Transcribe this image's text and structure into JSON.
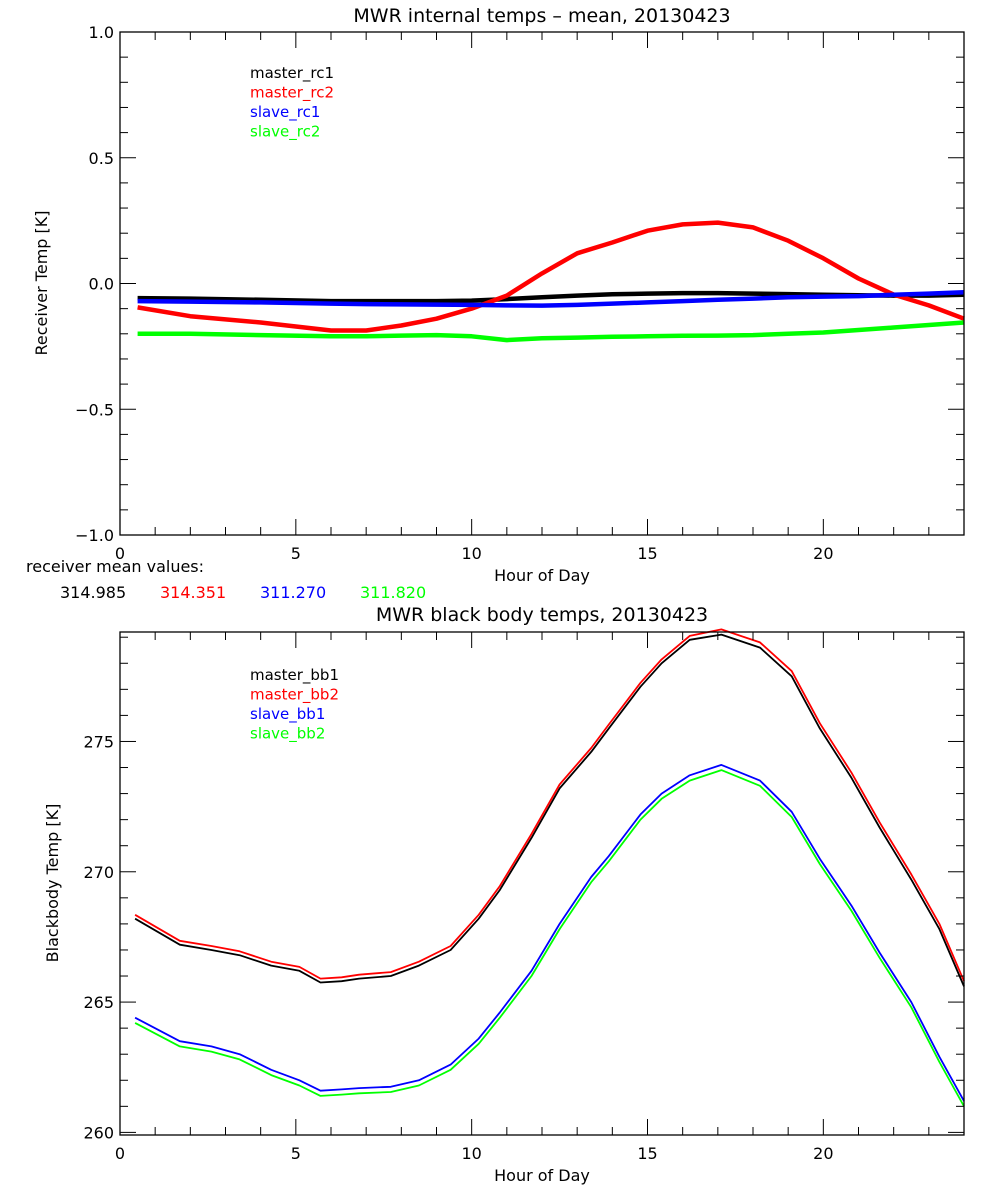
{
  "chart_data": [
    {
      "type": "line",
      "title": "MWR internal temps – mean, 20130423",
      "xlabel": "Hour of Day",
      "ylabel": "Receiver Temp [K]",
      "xlim": [
        0,
        24
      ],
      "ylim": [
        -1.0,
        1.0
      ],
      "xticks": [
        0,
        5,
        10,
        15,
        20
      ],
      "xtick_labels": [
        "0",
        "5",
        "10",
        "15",
        "20"
      ],
      "yticks": [
        -1.0,
        -0.5,
        0.0,
        0.5,
        1.0
      ],
      "ytick_labels": [
        "−1.0",
        "−0.5",
        "0.0",
        "0.5",
        "1.0"
      ],
      "grid": false,
      "legend_position": "top-left",
      "x": [
        0.5,
        2,
        4,
        6,
        7,
        8,
        9,
        10,
        11,
        12,
        13,
        14,
        15,
        16,
        17,
        18,
        19,
        20,
        21,
        22,
        23,
        24
      ],
      "series": [
        {
          "name": "master_rc1",
          "color": "#000000",
          "values": [
            -0.058,
            -0.06,
            -0.065,
            -0.07,
            -0.07,
            -0.07,
            -0.07,
            -0.068,
            -0.062,
            -0.055,
            -0.048,
            -0.043,
            -0.04,
            -0.038,
            -0.038,
            -0.04,
            -0.042,
            -0.045,
            -0.047,
            -0.048,
            -0.048,
            -0.045
          ]
        },
        {
          "name": "master_rc2",
          "color": "#ff0000",
          "values": [
            -0.095,
            -0.13,
            -0.155,
            -0.187,
            -0.187,
            -0.167,
            -0.14,
            -0.1,
            -0.048,
            0.04,
            0.12,
            0.163,
            0.21,
            0.235,
            0.242,
            0.223,
            0.17,
            0.1,
            0.02,
            -0.044,
            -0.087,
            -0.14
          ]
        },
        {
          "name": "slave_rc1",
          "color": "#0000ff",
          "values": [
            -0.07,
            -0.072,
            -0.075,
            -0.08,
            -0.082,
            -0.083,
            -0.084,
            -0.085,
            -0.087,
            -0.088,
            -0.085,
            -0.08,
            -0.075,
            -0.07,
            -0.065,
            -0.06,
            -0.055,
            -0.052,
            -0.05,
            -0.045,
            -0.04,
            -0.035
          ]
        },
        {
          "name": "slave_rc2",
          "color": "#00ff00",
          "values": [
            -0.2,
            -0.2,
            -0.205,
            -0.21,
            -0.21,
            -0.207,
            -0.205,
            -0.21,
            -0.225,
            -0.218,
            -0.215,
            -0.212,
            -0.21,
            -0.208,
            -0.207,
            -0.205,
            -0.2,
            -0.195,
            -0.185,
            -0.175,
            -0.165,
            -0.155
          ]
        }
      ],
      "annotation": {
        "label": "receiver mean values:",
        "values": [
          {
            "text": "314.985",
            "color": "#000000"
          },
          {
            "text": "314.351",
            "color": "#ff0000"
          },
          {
            "text": "311.270",
            "color": "#0000ff"
          },
          {
            "text": "311.820",
            "color": "#00ff00"
          }
        ]
      }
    },
    {
      "type": "line",
      "title": "MWR black body temps, 20130423",
      "xlabel": "Hour of Day",
      "ylabel": "Blackbody Temp [K]",
      "xlim": [
        0,
        24
      ],
      "ylim": [
        259.9,
        279.2
      ],
      "xticks": [
        0,
        5,
        10,
        15,
        20
      ],
      "xtick_labels": [
        "0",
        "5",
        "10",
        "15",
        "20"
      ],
      "yticks": [
        260,
        265,
        270,
        275
      ],
      "ytick_labels": [
        "260",
        "265",
        "270",
        "275"
      ],
      "grid": false,
      "legend_position": "top-left",
      "x": [
        0.43,
        1.7,
        2.6,
        3.4,
        4.3,
        5.1,
        5.7,
        6.3,
        6.8,
        7.7,
        8.5,
        9.4,
        10.2,
        10.8,
        11.7,
        12.5,
        13.4,
        13.9,
        14.8,
        15.4,
        16.2,
        17.1,
        18.2,
        19.1,
        19.9,
        20.8,
        21.6,
        22.5,
        23.3,
        24.0
      ],
      "series": [
        {
          "name": "master_bb1",
          "color": "#000000",
          "values": [
            268.2,
            267.2,
            267.0,
            266.8,
            266.4,
            266.2,
            265.75,
            265.8,
            265.9,
            266.0,
            266.4,
            267.0,
            268.2,
            269.3,
            271.3,
            273.2,
            274.6,
            275.5,
            277.1,
            278.0,
            278.9,
            279.1,
            278.6,
            277.5,
            275.5,
            273.6,
            271.7,
            269.7,
            267.8,
            265.6
          ]
        },
        {
          "name": "master_bb2",
          "color": "#ff0000",
          "values": [
            268.35,
            267.35,
            267.15,
            266.95,
            266.55,
            266.35,
            265.9,
            265.95,
            266.05,
            266.15,
            266.55,
            267.15,
            268.35,
            269.45,
            271.45,
            273.35,
            274.75,
            275.65,
            277.25,
            278.15,
            279.05,
            279.3,
            278.8,
            277.7,
            275.7,
            273.8,
            271.9,
            269.9,
            268.0,
            265.8
          ]
        },
        {
          "name": "slave_bb1",
          "color": "#0000ff",
          "values": [
            264.4,
            263.5,
            263.3,
            263.0,
            262.4,
            262.0,
            261.6,
            261.65,
            261.7,
            261.75,
            262.0,
            262.6,
            263.6,
            264.6,
            266.2,
            268.0,
            269.8,
            270.6,
            272.2,
            273.0,
            273.7,
            274.1,
            273.5,
            272.3,
            270.5,
            268.7,
            266.9,
            265.0,
            262.9,
            261.2
          ]
        },
        {
          "name": "slave_bb2",
          "color": "#00ff00",
          "values": [
            264.2,
            263.3,
            263.1,
            262.8,
            262.2,
            261.8,
            261.4,
            261.45,
            261.5,
            261.55,
            261.8,
            262.4,
            263.4,
            264.4,
            266.0,
            267.8,
            269.6,
            270.4,
            272.0,
            272.8,
            273.5,
            273.9,
            273.3,
            272.1,
            270.3,
            268.5,
            266.7,
            264.8,
            262.7,
            261.0
          ]
        }
      ]
    }
  ]
}
